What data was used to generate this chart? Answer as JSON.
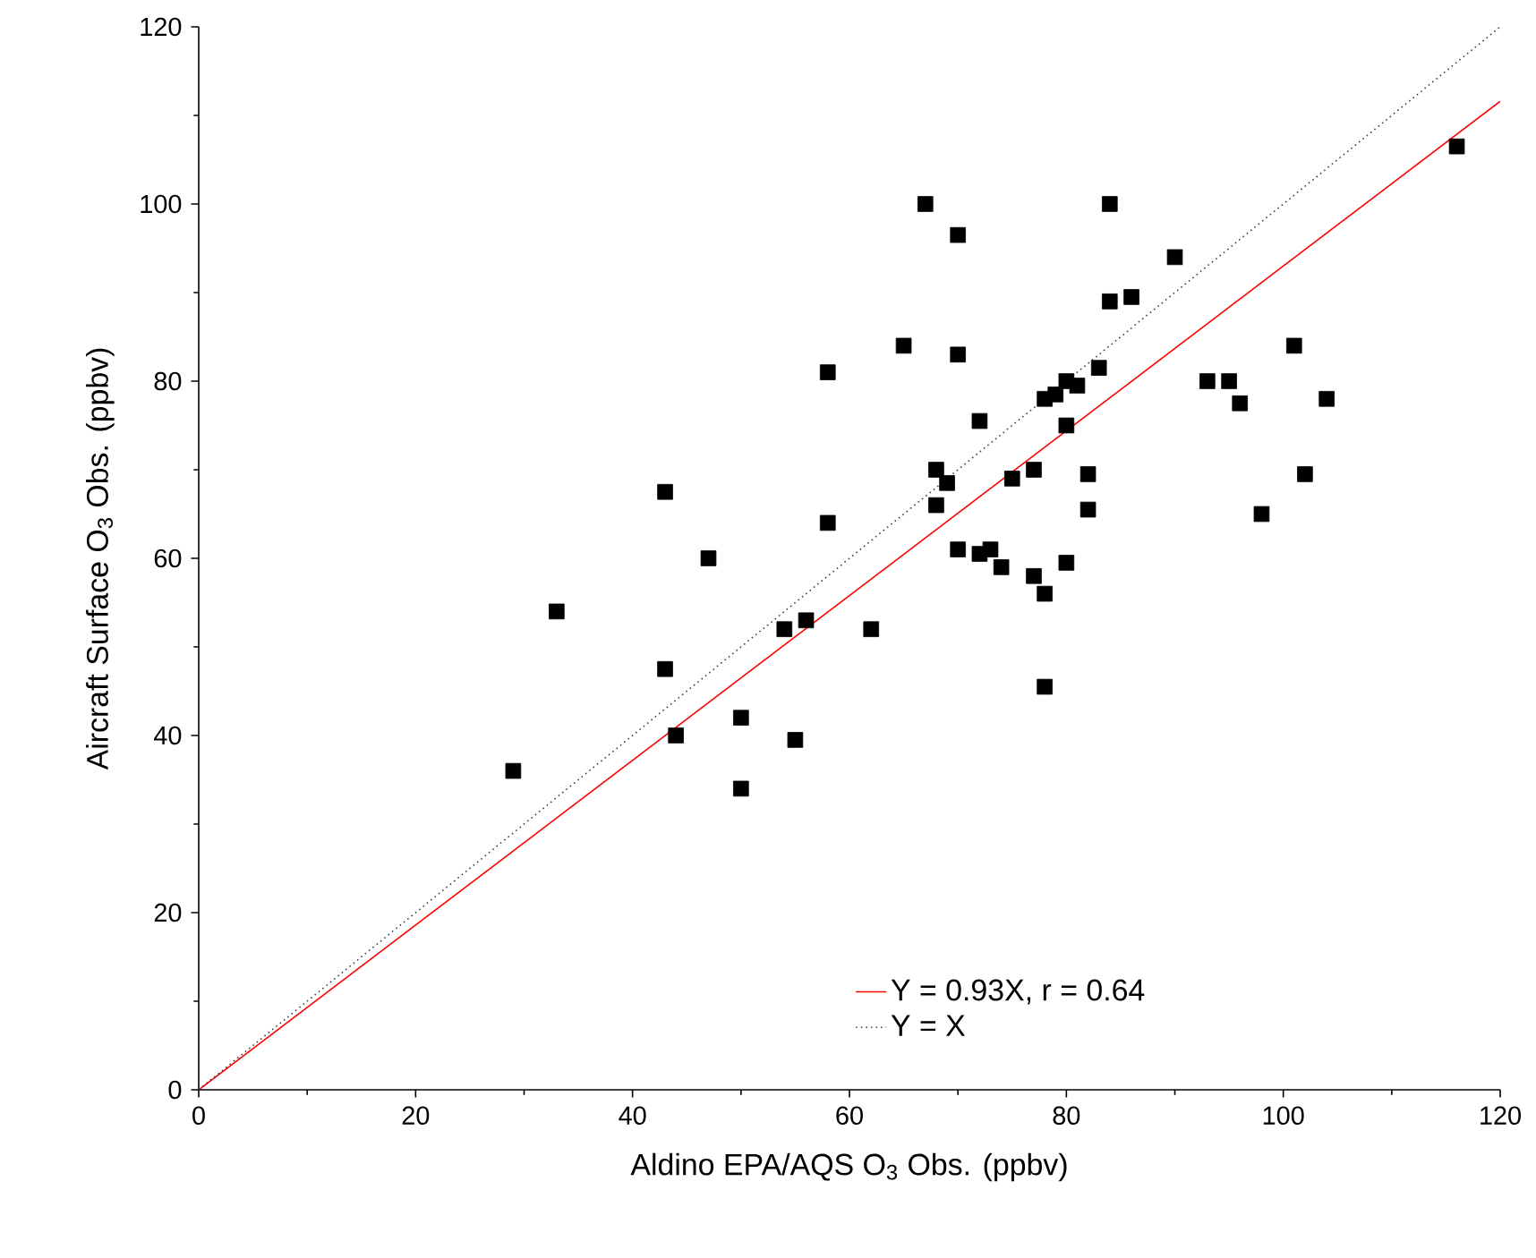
{
  "chart_data": {
    "type": "scatter",
    "xlabel": "Aldino EPA/AQS O$_{3}$ Obs. (ppbv)",
    "ylabel": "Aircraft Surface O$_{3}$ Obs. (ppbv)",
    "xlim": [
      0,
      120
    ],
    "ylim": [
      0,
      120
    ],
    "xticks": [
      0,
      20,
      40,
      60,
      80,
      100,
      120
    ],
    "yticks": [
      0,
      20,
      40,
      60,
      80,
      100,
      120
    ],
    "grid": false,
    "legend": "bottom right",
    "marker": "square",
    "series": [
      {
        "color": "#000000",
        "x": [
          29,
          33,
          43,
          43,
          44,
          47,
          50,
          50,
          54,
          55,
          56,
          58,
          58,
          62,
          65,
          67,
          68,
          68,
          69,
          70,
          70,
          70,
          72,
          72,
          73,
          74,
          75,
          77,
          77,
          78,
          78,
          78,
          79,
          80,
          80,
          80,
          81,
          82,
          82,
          83,
          84,
          84,
          86,
          90,
          93,
          95,
          96,
          98,
          101,
          102,
          104,
          116
        ],
        "values": [
          36,
          54,
          67.5,
          47.5,
          40,
          60,
          42,
          34,
          52,
          39.5,
          53,
          81,
          64,
          52,
          84,
          100,
          66,
          70,
          68.5,
          96.5,
          83,
          61,
          75.5,
          60.5,
          61,
          59,
          69,
          70,
          58,
          56,
          45.5,
          78,
          78.5,
          80,
          75,
          59.5,
          79.5,
          69.5,
          65.5,
          81.5,
          100,
          89,
          89.5,
          94,
          80,
          80,
          77.5,
          65,
          84,
          69.5,
          78,
          106.5
        ]
      },
      {
        "type": "line",
        "name": "Y = 0.93X, r = 0.64",
        "color": "#ff0000",
        "marker": "none",
        "line_style": "solid",
        "x": [
          0,
          120
        ],
        "values": [
          0,
          111.6
        ]
      },
      {
        "type": "line",
        "name": "Y = X",
        "color": "#404040",
        "marker": "none",
        "line_style": "dotted",
        "x": [
          0,
          120
        ],
        "values": [
          0,
          120
        ]
      }
    ]
  }
}
